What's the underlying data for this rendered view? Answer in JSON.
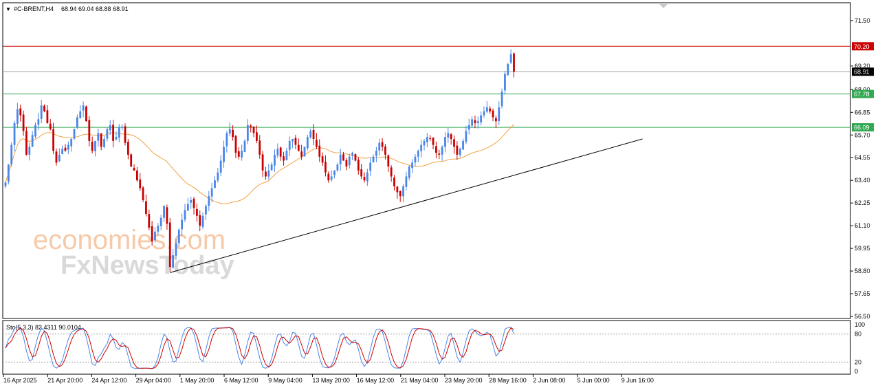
{
  "header": {
    "symbol": "#C-BRENT,H4",
    "ohlc": "68.94 69.04 68.88 68.91",
    "menu_glyph": "▼"
  },
  "watermark": {
    "line1": "economies.com",
    "line2": "FxNewsToday"
  },
  "stochastic": {
    "label": "Sto(5,3,3) 82.4311 90.0104",
    "levels": [
      100,
      80,
      20,
      0
    ],
    "level_labels": [
      "100",
      "80",
      "20",
      "0"
    ],
    "main_color": "#4a86e8",
    "signal_color": "#cc0000"
  },
  "colors": {
    "bull": "#4a86e8",
    "bear": "#cc0000",
    "ma": "#f0a040",
    "resistance": "#cc0000",
    "support": "#33a852",
    "current": "#000000",
    "trendline": "#000000"
  },
  "chart_data": {
    "type": "candlestick",
    "instrument": "#C-BRENT",
    "timeframe": "H4",
    "ylim": [
      56.5,
      71.5
    ],
    "y_ticks": [
      "71.50",
      "69.20",
      "68.00",
      "66.85",
      "65.70",
      "64.55",
      "63.40",
      "62.25",
      "61.10",
      "59.95",
      "58.80",
      "57.65",
      "56.50"
    ],
    "x_ticks": [
      "16 Apr 2025",
      "21 Apr 20:00",
      "24 Apr 12:00",
      "29 Apr 04:00",
      "1 May 20:00",
      "6 May 12:00",
      "9 May 04:00",
      "13 May 20:00",
      "16 May 12:00",
      "21 May 04:00",
      "23 May 20:00",
      "28 May 16:00",
      "2 Jun 08:00",
      "5 Jun 00:00",
      "9 Jun 16:00"
    ],
    "horizontal_lines": [
      {
        "value": 70.2,
        "label": "70.20",
        "role": "resistance"
      },
      {
        "value": 68.91,
        "label": "68.91",
        "role": "current"
      },
      {
        "value": 67.78,
        "label": "67.78",
        "role": "support"
      },
      {
        "value": 66.09,
        "label": "66.09",
        "role": "support"
      }
    ],
    "trendline": {
      "from": {
        "bar": 55,
        "value": 58.72
      },
      "to": {
        "bar": 213,
        "value": 65.5
      }
    },
    "closes": [
      63.3,
      64.2,
      65.2,
      66.3,
      67.0,
      66.7,
      65.9,
      64.7,
      65.1,
      65.7,
      66.2,
      66.5,
      67.2,
      66.9,
      66.3,
      66.0,
      64.9,
      64.3,
      64.7,
      65.0,
      64.9,
      65.2,
      65.5,
      66.0,
      66.6,
      66.9,
      67.2,
      66.4,
      65.4,
      64.9,
      65.4,
      65.8,
      65.1,
      65.5,
      66.0,
      66.2,
      65.4,
      65.6,
      66.1,
      66.1,
      65.3,
      64.7,
      64.1,
      63.9,
      63.4,
      63.0,
      62.4,
      61.7,
      61.0,
      60.3,
      60.8,
      61.1,
      61.5,
      62.1,
      61.2,
      59.0,
      59.6,
      60.2,
      60.9,
      61.4,
      61.9,
      62.2,
      62.4,
      62.0,
      61.6,
      61.1,
      61.6,
      62.1,
      62.6,
      63.0,
      63.4,
      63.8,
      64.4,
      65.1,
      65.8,
      66.0,
      65.6,
      64.8,
      64.6,
      64.9,
      65.4,
      66.2,
      66.1,
      65.8,
      65.4,
      64.7,
      63.9,
      63.6,
      63.9,
      64.2,
      64.7,
      65.0,
      64.6,
      64.4,
      64.9,
      65.4,
      65.5,
      65.2,
      64.9,
      64.6,
      65.1,
      65.6,
      65.9,
      65.5,
      65.1,
      64.6,
      64.3,
      63.8,
      63.4,
      63.6,
      63.9,
      64.2,
      64.7,
      64.4,
      64.1,
      64.6,
      64.8,
      64.4,
      63.9,
      63.6,
      63.4,
      63.8,
      64.3,
      64.6,
      64.9,
      65.3,
      65.1,
      64.7,
      64.1,
      63.6,
      63.1,
      62.8,
      62.6,
      63.1,
      63.6,
      64.1,
      64.3,
      64.6,
      64.9,
      65.2,
      65.4,
      65.6,
      65.5,
      65.2,
      64.8,
      64.7,
      65.1,
      65.6,
      65.8,
      65.5,
      65.1,
      64.7,
      65.0,
      65.4,
      65.9,
      66.2,
      66.5,
      66.3,
      66.4,
      66.7,
      66.9,
      67.1,
      66.9,
      66.6,
      66.4,
      67.1,
      67.9,
      68.8,
      69.3,
      69.8,
      68.91
    ]
  }
}
